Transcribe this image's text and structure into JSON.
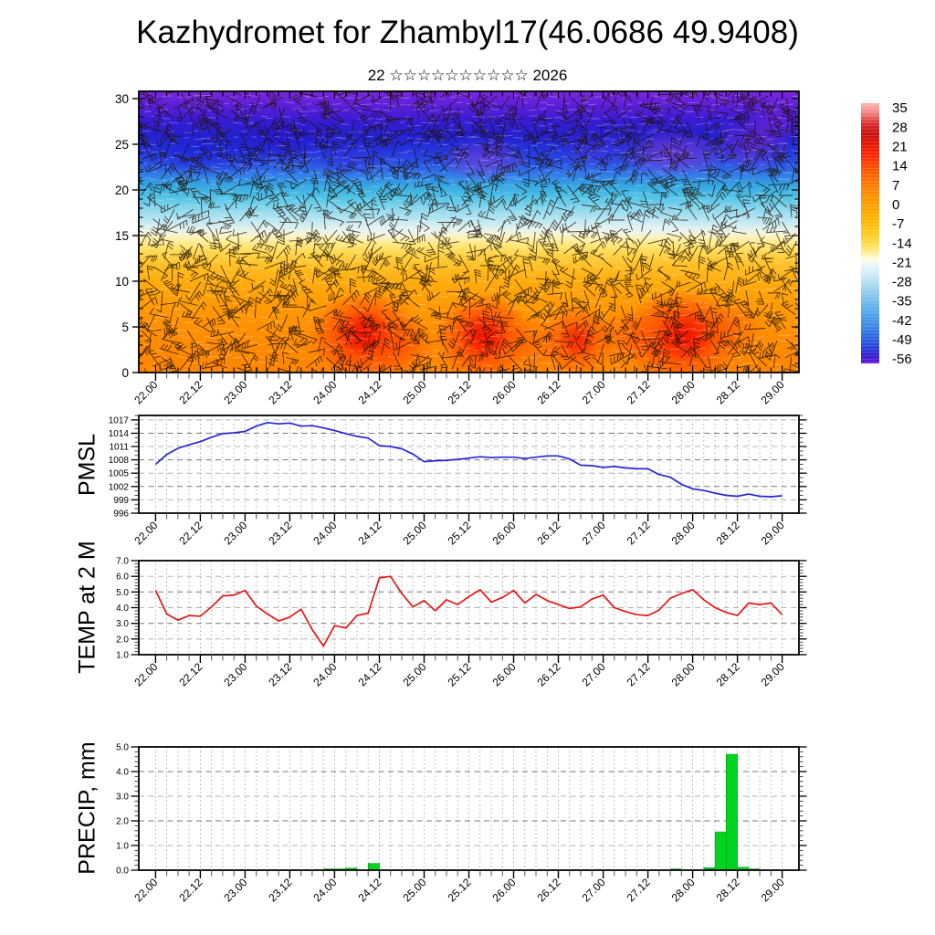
{
  "title": "Kazhydromet for Zhambyl17(46.0686 49.9408)",
  "subtitle": "22 ☆☆☆☆☆☆☆☆☆☆ 2026",
  "x_axis": {
    "tick_labels": [
      "22.00",
      "22.12",
      "23.00",
      "23.12",
      "24.00",
      "24.12",
      "25.00",
      "25.12",
      "26.00",
      "26.12",
      "27.00",
      "27.12",
      "28.00",
      "28.12",
      "29.00"
    ],
    "minor_step_hours": 3,
    "major_step_hours": 12
  },
  "colors": {
    "pmsl_line": "#2626d8",
    "temp_line": "#e81515",
    "precip_bar": "#00d41e",
    "box": "#000000",
    "grid_dark": "#787878",
    "grid_light": "#b4b4b4",
    "grid_vertical": "#999999"
  },
  "chart_data": [
    {
      "id": "temperature-height-cross-section",
      "type": "heatmap",
      "ylim": [
        0,
        30.8
      ],
      "ytick_labels": [
        "0",
        "5",
        "10",
        "15",
        "20",
        "25",
        "30"
      ],
      "yticks": [
        0,
        5,
        10,
        15,
        20,
        25,
        30
      ],
      "wind_barbs": true,
      "colorbar_labels": [
        "35",
        "28",
        "21",
        "14",
        "7",
        "0",
        "-7",
        "-14",
        "-21",
        "-28",
        "-35",
        "-42",
        "-49",
        "-56"
      ],
      "bands_top_to_bottom": [
        {
          "height_range": "27-30",
          "appearance": "violet-purple"
        },
        {
          "height_range": "21-27",
          "appearance": "dark blue with violet patches"
        },
        {
          "height_range": "17-21",
          "appearance": "cyan-blue"
        },
        {
          "height_range": "15-17",
          "appearance": "pale blue to white"
        },
        {
          "height_range": "13-15",
          "appearance": "pale yellow"
        },
        {
          "height_range": "0-13",
          "appearance": "orange with red warm cores"
        }
      ],
      "warm_core_times": [
        "24.12",
        "25.12",
        "26.12",
        "27.12-28.06"
      ]
    },
    {
      "id": "pmsl",
      "type": "line",
      "ylabel": "PMSL",
      "ytick_labels": [
        "996",
        "999",
        "1002",
        "1005",
        "1008",
        "1011",
        "1014",
        "1017"
      ],
      "yticks": [
        996,
        999,
        1002,
        1005,
        1008,
        1011,
        1014,
        1017
      ],
      "ylim": [
        996,
        1018
      ],
      "time_start": "22.00",
      "time_step_hours": 3,
      "values": [
        1007.0,
        1009.2,
        1010.6,
        1011.4,
        1012.1,
        1013.1,
        1013.9,
        1014.1,
        1014.4,
        1015.6,
        1016.4,
        1016.1,
        1016.3,
        1015.6,
        1015.7,
        1015.2,
        1014.6,
        1013.9,
        1013.3,
        1012.9,
        1011.2,
        1011.0,
        1010.5,
        1009.3,
        1007.6,
        1007.8,
        1007.9,
        1008.1,
        1008.4,
        1008.7,
        1008.5,
        1008.6,
        1008.6,
        1008.3,
        1008.6,
        1008.9,
        1008.9,
        1008.2,
        1006.8,
        1006.7,
        1006.3,
        1006.5,
        1006.2,
        1006.0,
        1006.0,
        1004.7,
        1004.1,
        1002.5,
        1001.5,
        1001.1,
        1000.5,
        1000.0,
        999.8,
        1000.3,
        999.8,
        999.7,
        999.9
      ]
    },
    {
      "id": "temp2m",
      "type": "line",
      "ylabel": "TEMP at 2 M",
      "ytick_labels": [
        "1.0",
        "2.0",
        "3.0",
        "4.0",
        "5.0",
        "6.0",
        "7.0"
      ],
      "yticks": [
        1,
        2,
        3,
        4,
        5,
        6,
        7
      ],
      "ylim": [
        1,
        7
      ],
      "time_start": "22.00",
      "time_step_hours": 3,
      "values": [
        5.1,
        3.6,
        3.2,
        3.5,
        3.45,
        4.05,
        4.75,
        4.8,
        5.1,
        4.1,
        3.6,
        3.15,
        3.4,
        3.9,
        2.6,
        1.55,
        2.85,
        2.7,
        3.5,
        3.65,
        5.9,
        6.0,
        4.9,
        4.05,
        4.45,
        3.8,
        4.5,
        4.2,
        4.7,
        5.15,
        4.35,
        4.65,
        5.1,
        4.3,
        4.85,
        4.45,
        4.2,
        3.95,
        4.05,
        4.55,
        4.8,
        4.0,
        3.75,
        3.55,
        3.5,
        3.85,
        4.6,
        4.9,
        5.15,
        4.5,
        4.0,
        3.7,
        3.5,
        4.3,
        4.2,
        4.3,
        3.55
      ]
    },
    {
      "id": "precip",
      "type": "bar",
      "ylabel": "PRECIP, mm",
      "ytick_labels": [
        "0.0",
        "1.0",
        "2.0",
        "3.0",
        "4.0",
        "5.0"
      ],
      "yticks": [
        0,
        1,
        2,
        3,
        4,
        5
      ],
      "ylim": [
        0,
        5
      ],
      "bar_width_hours": 3,
      "bars": [
        {
          "t_hours_from_22.00": 45,
          "value": 0.05
        },
        {
          "t_hours_from_22.00": 48,
          "value": 0.05
        },
        {
          "t_hours_from_22.00": 51,
          "value": 0.08
        },
        {
          "t_hours_from_22.00": 57,
          "value": 0.27
        },
        {
          "t_hours_from_22.00": 138,
          "value": 0.05
        },
        {
          "t_hours_from_22.00": 147,
          "value": 0.1
        },
        {
          "t_hours_from_22.00": 150,
          "value": 1.55
        },
        {
          "t_hours_from_22.00": 153,
          "value": 4.7
        },
        {
          "t_hours_from_22.00": 156,
          "value": 0.12
        },
        {
          "t_hours_from_22.00": 159,
          "value": 0.05
        }
      ]
    }
  ]
}
